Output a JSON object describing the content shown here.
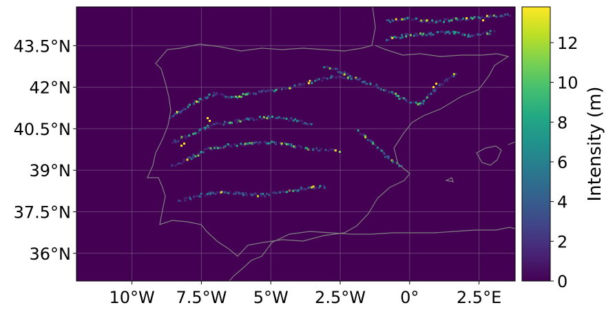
{
  "chart_data": {
    "type": "heatmap",
    "title": "",
    "x_ticks": [
      "10°W",
      "7.5°W",
      "5°W",
      "2.5°W",
      "0°",
      "2.5°E"
    ],
    "x_tick_values": [
      -10,
      -7.5,
      -5,
      -2.5,
      0,
      2.5
    ],
    "y_ticks": [
      "43.5°N",
      "42°N",
      "40.5°N",
      "39°N",
      "37.5°N",
      "36°N"
    ],
    "y_tick_values": [
      43.5,
      42,
      40.5,
      39,
      37.5,
      36
    ],
    "lon_range": [
      -12,
      3.8
    ],
    "lat_range": [
      35,
      44.9
    ],
    "grid": true,
    "colorbar": {
      "label": "Intensity (m)",
      "ticks": [
        "0",
        "2",
        "4",
        "6",
        "8",
        "10",
        "12"
      ],
      "tick_values": [
        0,
        2,
        4,
        6,
        8,
        10,
        12
      ],
      "range": [
        0,
        13.8
      ],
      "colormap": "viridis"
    },
    "colors": {
      "background": "#440154",
      "coastline": "#808080",
      "grid": "#b0b0b0"
    }
  }
}
